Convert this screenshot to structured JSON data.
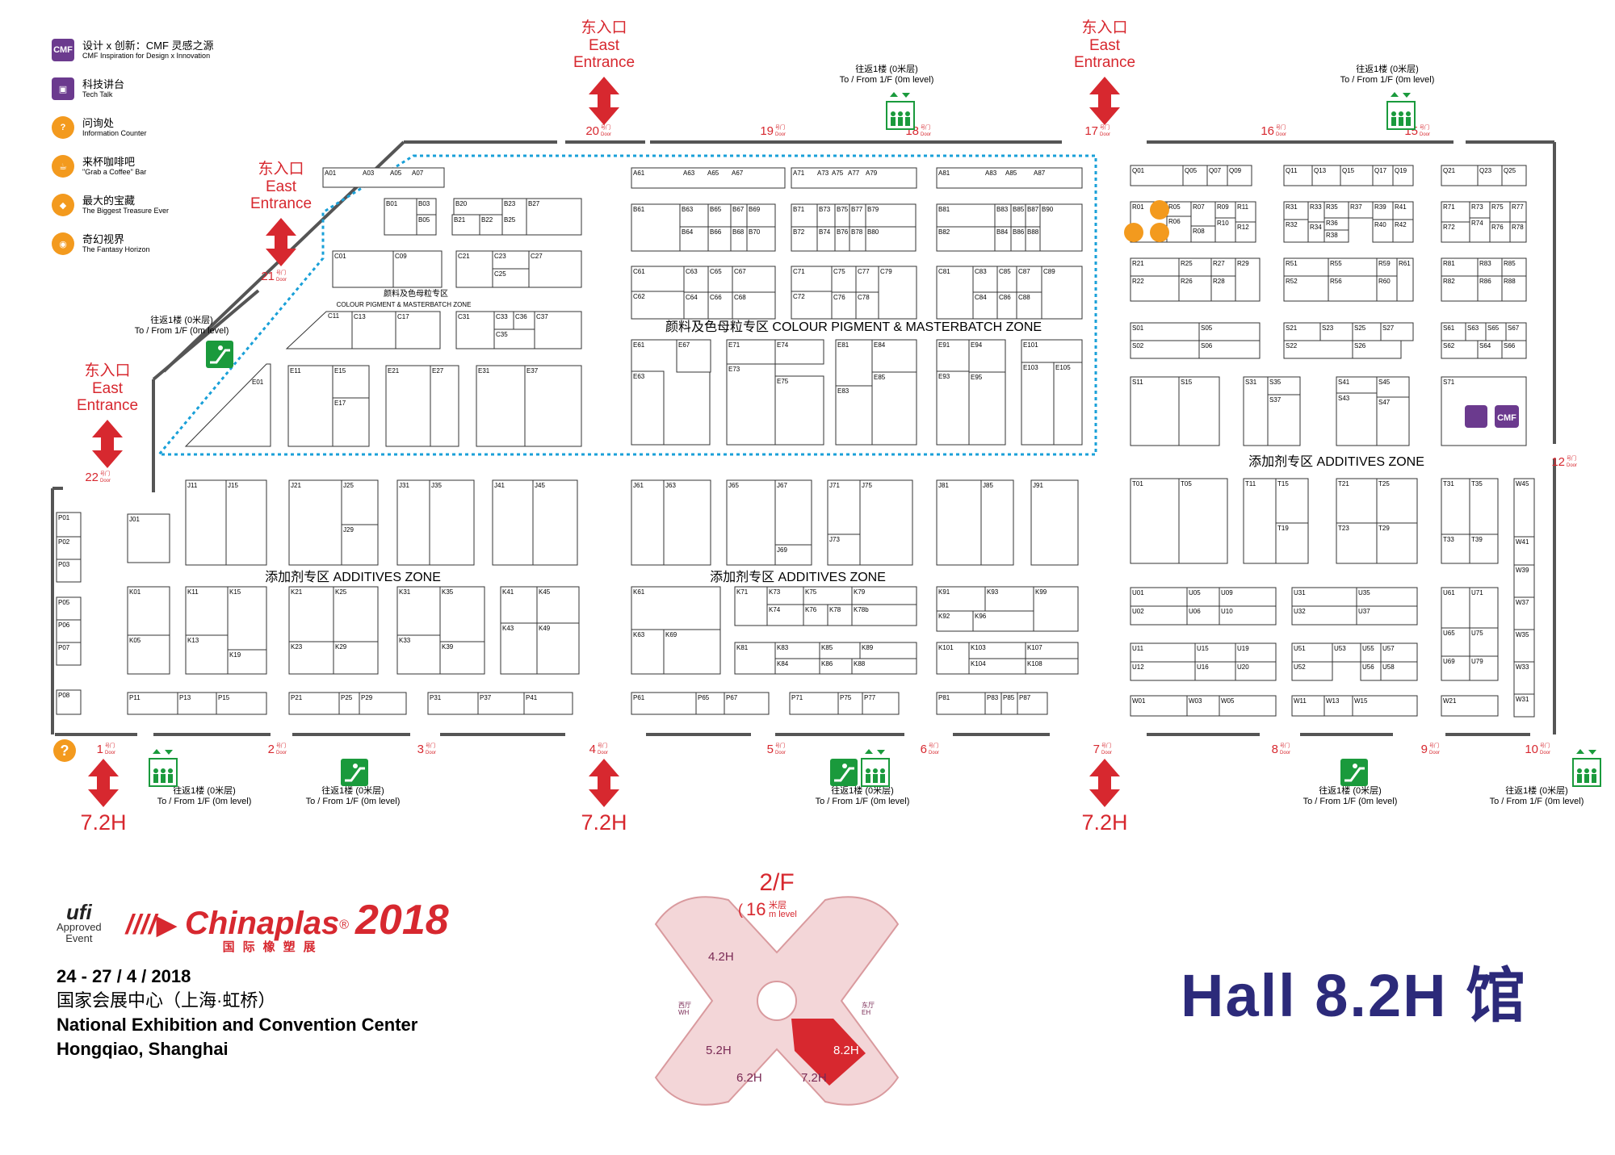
{
  "legend": [
    {
      "icon": "cmf-icon",
      "zh": "设计 x 创新：CMF 灵感之源",
      "en": "CMF Inspiration for Design x Innovation",
      "color": "#6b3a8e",
      "glyph": "CMF"
    },
    {
      "icon": "tech-talk-icon",
      "zh": "科技讲台",
      "en": "Tech Talk",
      "color": "#6b3a8e",
      "glyph": "▣"
    },
    {
      "icon": "information-icon",
      "zh": "问询处",
      "en": "Information Counter",
      "color": "#f39a1e",
      "glyph": "?"
    },
    {
      "icon": "coffee-icon",
      "zh": "来杯咖啡吧",
      "en": "\"Grab a Coffee\" Bar",
      "color": "#f39a1e",
      "glyph": "☕"
    },
    {
      "icon": "treasure-icon",
      "zh": "最大的宝藏",
      "en": "The Biggest Treasure Ever",
      "color": "#f39a1e",
      "glyph": "◆"
    },
    {
      "icon": "fantasy-icon",
      "zh": "奇幻视界",
      "en": "The Fantasy Horizon",
      "color": "#f39a1e",
      "glyph": "◉"
    }
  ],
  "entrance": {
    "zh": "东入口",
    "en1": "East",
    "en2": "Entrance"
  },
  "door_suffix": "号门 Door",
  "to_from": {
    "zh": "往返1楼 (0米层)",
    "en": "To / From 1/F (0m level)"
  },
  "link_hall": "7.2H",
  "zones": {
    "pigment": "颜料及色母粒专区 COLOUR PIGMENT & MASTERBATCH ZONE",
    "pigment_small_zh": "颜料及色母粒专区",
    "pigment_small_en": "COLOUR PIGMENT & MASTERBATCH ZONE",
    "additives": "添加剂专区 ADDITIVES ZONE"
  },
  "doors": [
    "1",
    "2",
    "3",
    "4",
    "5",
    "6",
    "7",
    "8",
    "9",
    "10",
    "12",
    "15",
    "16",
    "17",
    "18",
    "19",
    "20",
    "21",
    "22"
  ],
  "floor": {
    "title": "2/F",
    "level_num": "16",
    "level_txt1": "米层",
    "level_txt2": "m level",
    "halls": [
      "4.2H",
      "5.2H",
      "6.2H",
      "7.2H",
      "8.2H"
    ],
    "west": "西厅",
    "west_en": "WH",
    "east": "东厅",
    "east_en": "EH"
  },
  "event": {
    "ufi": "ufi",
    "ufi_l1": "Approved",
    "ufi_l2": "Event",
    "name": "Chinaplas",
    "reg": "®",
    "year": "2018",
    "name_cn": "国际橡塑展",
    "dates": "24 - 27 / 4 / 2018",
    "venue_cn": "国家会展中心（上海·虹桥）",
    "venue_en1": "National Exhibition and Convention Center",
    "venue_en2": "Hongqiao, Shanghai"
  },
  "hall_title": "Hall 8.2H 馆",
  "colors": {
    "red": "#d7282f",
    "green": "#1a9a3c",
    "navy": "#2c2a7a",
    "dotted": "#1aa0d8",
    "wall": "#555555"
  },
  "booth_labels": {
    "A": [
      "A01",
      "A03",
      "A05",
      "A07",
      "A61",
      "A63",
      "A65",
      "A67",
      "A71",
      "A73",
      "A75",
      "A77",
      "A79",
      "A81",
      "A83",
      "A85",
      "A87"
    ],
    "B": [
      "B01",
      "B03",
      "B05",
      "B20",
      "B21",
      "B22",
      "B23",
      "B25",
      "B27",
      "B61",
      "B63",
      "B64",
      "B65",
      "B66",
      "B67",
      "B68",
      "B69",
      "B70",
      "B71",
      "B72",
      "B73",
      "B74",
      "B75",
      "B76",
      "B77",
      "B78",
      "B79",
      "B80",
      "B81",
      "B82",
      "B83",
      "B84",
      "B85",
      "B86",
      "B87",
      "B88",
      "B90"
    ],
    "C": [
      "C01",
      "C09",
      "C21",
      "C23",
      "C25",
      "C27",
      "C11",
      "C13",
      "C17",
      "C31",
      "C33",
      "C35",
      "C36",
      "C37",
      "C61",
      "C62",
      "C63",
      "C64",
      "C65",
      "C66",
      "C67",
      "C68",
      "C71",
      "C72",
      "C75",
      "C76",
      "C77",
      "C78",
      "C79",
      "C81",
      "C83",
      "C84",
      "C85",
      "C86",
      "C87",
      "C88",
      "C89"
    ],
    "E": [
      "E01",
      "E11",
      "E15",
      "E17",
      "E21",
      "E27",
      "E31",
      "E37",
      "E61",
      "E63",
      "E67",
      "E71",
      "E73",
      "E74",
      "E75",
      "E81",
      "E83",
      "E84",
      "E85",
      "E91",
      "E93",
      "E94",
      "E95",
      "E101",
      "E103",
      "E105"
    ],
    "J": [
      "J01",
      "J11",
      "J15",
      "J21",
      "J25",
      "J29",
      "J31",
      "J35",
      "J41",
      "J45",
      "J61",
      "J63",
      "J65",
      "J67",
      "J69",
      "J71",
      "J73",
      "J75",
      "J81",
      "J85",
      "J91"
    ],
    "K": [
      "K01",
      "K05",
      "K11",
      "K13",
      "K15",
      "K19",
      "K21",
      "K23",
      "K25",
      "K29",
      "K31",
      "K33",
      "K35",
      "K39",
      "K41",
      "K43",
      "K45",
      "K49",
      "K61",
      "K63",
      "K69",
      "K71",
      "K73",
      "K74",
      "K75",
      "K76",
      "K78",
      "K79",
      "K81",
      "K83",
      "K84",
      "K85",
      "K86",
      "K88",
      "K89",
      "K91",
      "K92",
      "K93",
      "K96",
      "K99",
      "K101",
      "K103",
      "K104",
      "K107",
      "K108"
    ],
    "P": [
      "P01",
      "P02",
      "P03",
      "P05",
      "P06",
      "P07",
      "P08",
      "P11",
      "P13",
      "P15",
      "P21",
      "P25",
      "P29",
      "P31",
      "P37",
      "P41",
      "P61",
      "P65",
      "P67",
      "P71",
      "P75",
      "P77",
      "P81",
      "P83",
      "P85",
      "P87"
    ],
    "Q": [
      "Q01",
      "Q05",
      "Q07",
      "Q09",
      "Q11",
      "Q13",
      "Q15",
      "Q17",
      "Q19",
      "Q21",
      "Q23",
      "Q25"
    ],
    "R": [
      "R01",
      "R05",
      "R06",
      "R07",
      "R08",
      "R09",
      "R10",
      "R11",
      "R12",
      "R21",
      "R22",
      "R25",
      "R26",
      "R27",
      "R28",
      "R29",
      "R31",
      "R32",
      "R33",
      "R34",
      "R35",
      "R36",
      "R37",
      "R38",
      "R39",
      "R40",
      "R41",
      "R42",
      "R51",
      "R52",
      "R55",
      "R56",
      "R59",
      "R60",
      "R61",
      "R71",
      "R72",
      "R73",
      "R74",
      "R75",
      "R76",
      "R77",
      "R78",
      "R81",
      "R82",
      "R83",
      "R85",
      "R86",
      "R88"
    ],
    "S": [
      "S01",
      "S02",
      "S05",
      "S06",
      "S11",
      "S15",
      "S21",
      "S22",
      "S23",
      "S25",
      "S26",
      "S27",
      "S31",
      "S35",
      "S37",
      "S41",
      "S43",
      "S45",
      "S47",
      "S61",
      "S62",
      "S63",
      "S64",
      "S65",
      "S66",
      "S67",
      "S71"
    ],
    "T": [
      "T01",
      "T05",
      "T11",
      "T15",
      "T19",
      "T21",
      "T23",
      "T25",
      "T29",
      "T31",
      "T33",
      "T35",
      "T39"
    ],
    "U": [
      "U01",
      "U02",
      "U05",
      "U06",
      "U09",
      "U10",
      "U11",
      "U12",
      "U15",
      "U16",
      "U19",
      "U20",
      "U31",
      "U32",
      "U35",
      "U37",
      "U51",
      "U52",
      "U53",
      "U55",
      "U56",
      "U57",
      "U58",
      "U61",
      "U65",
      "U69",
      "U71",
      "U75",
      "U79"
    ],
    "W": [
      "W01",
      "W03",
      "W05",
      "W11",
      "W13",
      "W15",
      "W21",
      "W31",
      "W33",
      "W35",
      "W37",
      "W39",
      "W41",
      "W45"
    ]
  }
}
